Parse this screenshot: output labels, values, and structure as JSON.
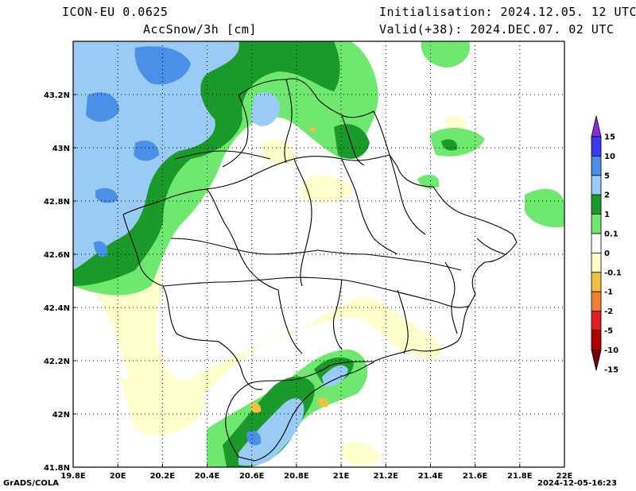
{
  "header": {
    "model": "ICON-EU 0.0625",
    "field": "AccSnow/3h [cm]",
    "init": "Initialisation: 2024.12.05. 12 UTC",
    "valid": "Valid(+38): 2024.DEC.07. 02 UTC"
  },
  "axes": {
    "lat_labels": [
      "43.2N",
      "43N",
      "42.8N",
      "42.6N",
      "42.4N",
      "42.2N",
      "42N",
      "41.8N"
    ],
    "lon_labels": [
      "19.8E",
      "20E",
      "20.2E",
      "20.4E",
      "20.6E",
      "20.8E",
      "21E",
      "21.2E",
      "21.4E",
      "21.6E",
      "21.8E",
      "22E"
    ],
    "lon_range": [
      19.8,
      22.0
    ],
    "lat_range": [
      41.8,
      43.4
    ],
    "grid": true
  },
  "colorbar": {
    "labels": [
      "15",
      "10",
      "5",
      "2",
      "1",
      "0.1",
      "0",
      "-0.1",
      "-1",
      "-2",
      "-5",
      "-10",
      "-15"
    ],
    "colors": [
      "#8a2be2",
      "#3a3af0",
      "#4a90e8",
      "#9acbf5",
      "#1a9a2a",
      "#6ee86e",
      "#ffffff",
      "#ffffcc",
      "#f0c040",
      "#f08030",
      "#e02020",
      "#b00000"
    ]
  },
  "colors": {
    "light_blue": "#9acbf5",
    "mid_blue": "#4a90e8",
    "dark_green": "#1a9a2a",
    "light_green": "#6ee86e",
    "pale_yellow": "#ffffcc",
    "orange": "#f0c040"
  },
  "footer": {
    "left": "GrADS/COLA",
    "right": "2024-12-05-16:23"
  }
}
